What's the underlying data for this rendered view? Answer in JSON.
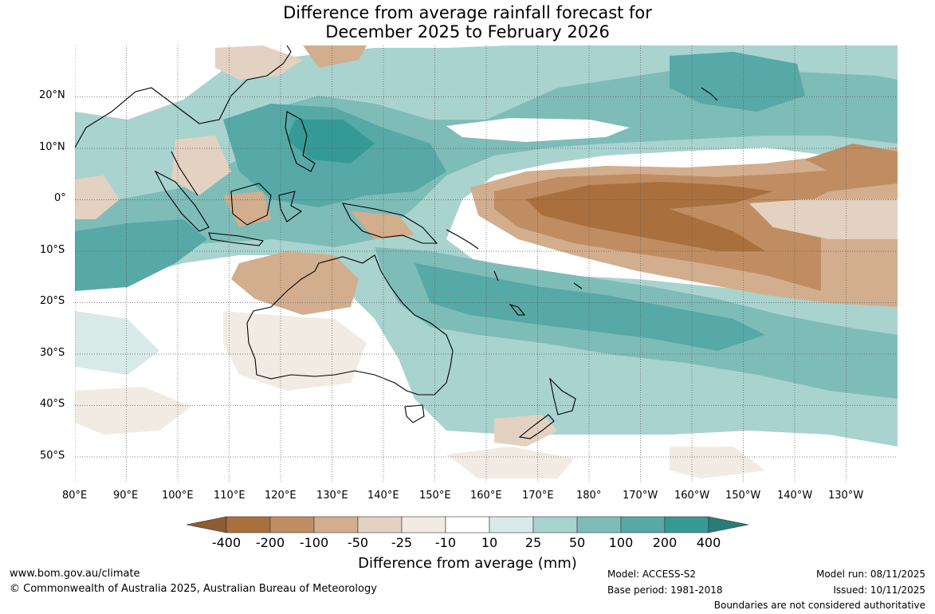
{
  "title": {
    "line1": "Difference from average rainfall forecast for",
    "line2": "December 2025 to February 2026"
  },
  "map": {
    "lon_labels": [
      "80°E",
      "90°E",
      "100°E",
      "110°E",
      "120°E",
      "130°E",
      "140°E",
      "150°E",
      "160°E",
      "170°E",
      "180°",
      "170°W",
      "160°W",
      "150°W",
      "140°W",
      "130°W"
    ],
    "lat_labels": [
      "20°N",
      "10°N",
      "0°",
      "10°S",
      "20°S",
      "30°S",
      "40°S",
      "50°S"
    ],
    "lon_range": [
      80,
      240
    ],
    "lat_range": [
      -55,
      30
    ]
  },
  "legend": {
    "title": "Difference from average (mm)",
    "values": [
      "-400",
      "-200",
      "-100",
      "-50",
      "-25",
      "-10",
      "10",
      "25",
      "50",
      "100",
      "200",
      "400"
    ],
    "colors": [
      "#a9703e",
      "#c08d62",
      "#d2ae8e",
      "#e3d1c2",
      "#f1ebe4",
      "#ffffff",
      "#d7eae8",
      "#a9d3cf",
      "#7ebcb8",
      "#56a9a6",
      "#359a95"
    ],
    "end_colors": {
      "low": "#8f5c30",
      "high": "#2a7c78"
    }
  },
  "footer": {
    "website": "www.bom.gov.au/climate",
    "copyright": "© Commonwealth of Australia 2025, Australian Bureau of Meteorology",
    "model": "Model: ACCESS-S2",
    "base_period": "Base period: 1981-2018",
    "model_run": "Model run: 08/11/2025",
    "issued": "Issued: 10/11/2025",
    "disclaimer": "Boundaries are not considered authoritative"
  }
}
